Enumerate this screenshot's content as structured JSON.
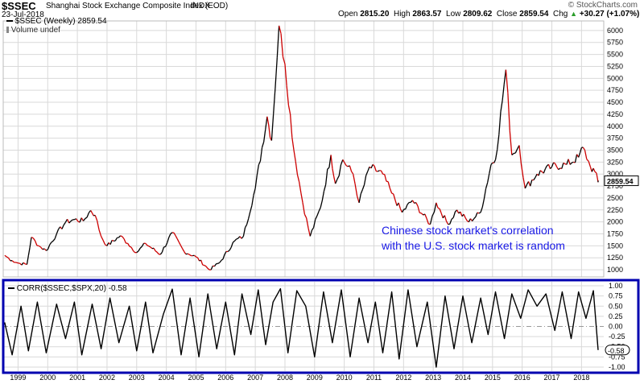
{
  "header": {
    "symbol": "$SSEC",
    "name": "Shanghai Stock Exchange Composite Index (EOD)",
    "exchange": "INDX",
    "date": "23-Jul-2018",
    "open_label": "Open",
    "open": "2815.20",
    "high_label": "High",
    "high": "2863.57",
    "low_label": "Low",
    "low": "2809.62",
    "close_label": "Close",
    "close": "2859.54",
    "chg_label": "Chg",
    "chg": "+30.27 (+1.07%)",
    "up_arrow": "▲",
    "copyright": "© StockCharts.com"
  },
  "price_panel": {
    "legend": "$SSEC (Weekly) 2859.54",
    "volume_label": "Volume undef",
    "last_value": "2859.54"
  },
  "corr_panel": {
    "legend": "CORR($SSEC,$SPX,20) -0.58",
    "last_value": "-0.58"
  },
  "annotation": {
    "line1": "Chinese stock market's correlation",
    "line2": "with the U.S. stock market is random"
  },
  "colors": {
    "price_line": "#000000",
    "price_down": "#cc0000",
    "grid": "#d9d9d9",
    "corr_border": "#0000b0",
    "annotation": "#1a1ae6",
    "zero_line": "#999999"
  },
  "chart_data": [
    {
      "type": "line",
      "series": [
        {
          "name": "$SSEC (Weekly)",
          "values": [
            {
              "x": 1998.55,
              "y": 1300
            },
            {
              "x": 1998.8,
              "y": 1190
            },
            {
              "x": 1999.0,
              "y": 1140
            },
            {
              "x": 1999.3,
              "y": 1110
            },
            {
              "x": 1999.45,
              "y": 1680
            },
            {
              "x": 1999.7,
              "y": 1500
            },
            {
              "x": 1999.95,
              "y": 1400
            },
            {
              "x": 2000.3,
              "y": 1750
            },
            {
              "x": 2000.6,
              "y": 1990
            },
            {
              "x": 2000.9,
              "y": 2050
            },
            {
              "x": 2001.2,
              "y": 2020
            },
            {
              "x": 2001.45,
              "y": 2240
            },
            {
              "x": 2001.6,
              "y": 2140
            },
            {
              "x": 2001.8,
              "y": 1700
            },
            {
              "x": 2002.0,
              "y": 1500
            },
            {
              "x": 2002.45,
              "y": 1710
            },
            {
              "x": 2002.7,
              "y": 1550
            },
            {
              "x": 2003.0,
              "y": 1360
            },
            {
              "x": 2003.3,
              "y": 1550
            },
            {
              "x": 2003.8,
              "y": 1320
            },
            {
              "x": 2004.2,
              "y": 1780
            },
            {
              "x": 2004.6,
              "y": 1380
            },
            {
              "x": 2005.0,
              "y": 1270
            },
            {
              "x": 2005.45,
              "y": 1000
            },
            {
              "x": 2005.8,
              "y": 1150
            },
            {
              "x": 2006.3,
              "y": 1600
            },
            {
              "x": 2006.6,
              "y": 1700
            },
            {
              "x": 2007.0,
              "y": 2700
            },
            {
              "x": 2007.4,
              "y": 4200
            },
            {
              "x": 2007.55,
              "y": 3700
            },
            {
              "x": 2007.8,
              "y": 6100
            },
            {
              "x": 2008.0,
              "y": 5300
            },
            {
              "x": 2008.3,
              "y": 3500
            },
            {
              "x": 2008.6,
              "y": 2400
            },
            {
              "x": 2008.85,
              "y": 1700
            },
            {
              "x": 2009.2,
              "y": 2300
            },
            {
              "x": 2009.55,
              "y": 3400
            },
            {
              "x": 2009.7,
              "y": 2800
            },
            {
              "x": 2009.95,
              "y": 3300
            },
            {
              "x": 2010.3,
              "y": 3000
            },
            {
              "x": 2010.5,
              "y": 2400
            },
            {
              "x": 2010.85,
              "y": 3150
            },
            {
              "x": 2011.3,
              "y": 3000
            },
            {
              "x": 2011.6,
              "y": 2600
            },
            {
              "x": 2011.95,
              "y": 2200
            },
            {
              "x": 2012.3,
              "y": 2450
            },
            {
              "x": 2012.9,
              "y": 1950
            },
            {
              "x": 2013.1,
              "y": 2400
            },
            {
              "x": 2013.5,
              "y": 1950
            },
            {
              "x": 2013.8,
              "y": 2250
            },
            {
              "x": 2014.2,
              "y": 2000
            },
            {
              "x": 2014.6,
              "y": 2200
            },
            {
              "x": 2014.95,
              "y": 3200
            },
            {
              "x": 2015.1,
              "y": 3300
            },
            {
              "x": 2015.45,
              "y": 5180
            },
            {
              "x": 2015.65,
              "y": 3400
            },
            {
              "x": 2015.9,
              "y": 3600
            },
            {
              "x": 2016.1,
              "y": 2700
            },
            {
              "x": 2016.5,
              "y": 3000
            },
            {
              "x": 2017.0,
              "y": 3150
            },
            {
              "x": 2017.5,
              "y": 3200
            },
            {
              "x": 2017.9,
              "y": 3350
            },
            {
              "x": 2018.05,
              "y": 3560
            },
            {
              "x": 2018.3,
              "y": 3150
            },
            {
              "x": 2018.45,
              "y": 3050
            },
            {
              "x": 2018.56,
              "y": 2830
            },
            {
              "x": 2018.56,
              "y": 2859.54
            }
          ]
        }
      ],
      "ylim": [
        850,
        6200
      ],
      "yticks": [
        1000,
        1250,
        1500,
        1750,
        2000,
        2250,
        2500,
        2750,
        3000,
        3250,
        3500,
        3750,
        4000,
        4250,
        4500,
        4750,
        5000,
        5250,
        5500,
        5750,
        6000
      ],
      "ytick_labels": [
        "1000",
        "1250",
        "1500",
        "1750",
        "2000",
        "2250",
        "2500",
        "2750",
        "3000",
        "3250",
        "3500",
        "3750",
        "4000",
        "4250",
        "4500",
        "4750",
        "5000",
        "5250",
        "5500",
        "5750",
        "6000"
      ],
      "xlim": [
        1998.5,
        2018.75
      ],
      "grid": true,
      "legend_position": "top-left"
    },
    {
      "type": "line",
      "series": [
        {
          "name": "CORR($SSEC,$SPX,20)",
          "values": [
            {
              "x": 1998.55,
              "y": 0.1
            },
            {
              "x": 1998.8,
              "y": -0.7
            },
            {
              "x": 1999.1,
              "y": 0.5
            },
            {
              "x": 1999.35,
              "y": -0.6
            },
            {
              "x": 1999.65,
              "y": 0.6
            },
            {
              "x": 1999.95,
              "y": -0.65
            },
            {
              "x": 2000.3,
              "y": 0.55
            },
            {
              "x": 2000.6,
              "y": -0.3
            },
            {
              "x": 2000.9,
              "y": 0.6
            },
            {
              "x": 2001.15,
              "y": -0.7
            },
            {
              "x": 2001.5,
              "y": 0.55
            },
            {
              "x": 2001.8,
              "y": -0.55
            },
            {
              "x": 2002.1,
              "y": 0.7
            },
            {
              "x": 2002.4,
              "y": -0.4
            },
            {
              "x": 2002.75,
              "y": 0.5
            },
            {
              "x": 2003.0,
              "y": -0.6
            },
            {
              "x": 2003.3,
              "y": 0.6
            },
            {
              "x": 2003.55,
              "y": -0.65
            },
            {
              "x": 2003.9,
              "y": 0.3
            },
            {
              "x": 2004.2,
              "y": 0.92
            },
            {
              "x": 2004.5,
              "y": -0.7
            },
            {
              "x": 2004.8,
              "y": 0.7
            },
            {
              "x": 2005.1,
              "y": -0.75
            },
            {
              "x": 2005.4,
              "y": 0.8
            },
            {
              "x": 2005.7,
              "y": -0.55
            },
            {
              "x": 2006.0,
              "y": 0.6
            },
            {
              "x": 2006.3,
              "y": -0.7
            },
            {
              "x": 2006.55,
              "y": 0.8
            },
            {
              "x": 2006.85,
              "y": -0.2
            },
            {
              "x": 2007.1,
              "y": 0.9
            },
            {
              "x": 2007.35,
              "y": -0.45
            },
            {
              "x": 2007.6,
              "y": 0.6
            },
            {
              "x": 2007.85,
              "y": 0.93
            },
            {
              "x": 2008.1,
              "y": -0.65
            },
            {
              "x": 2008.4,
              "y": 0.88
            },
            {
              "x": 2008.7,
              "y": 0.5
            },
            {
              "x": 2009.0,
              "y": -0.75
            },
            {
              "x": 2009.3,
              "y": 0.85
            },
            {
              "x": 2009.6,
              "y": -0.4
            },
            {
              "x": 2009.9,
              "y": 0.9
            },
            {
              "x": 2010.2,
              "y": -0.75
            },
            {
              "x": 2010.5,
              "y": 0.7
            },
            {
              "x": 2010.8,
              "y": -0.4
            },
            {
              "x": 2011.05,
              "y": 0.6
            },
            {
              "x": 2011.3,
              "y": -0.65
            },
            {
              "x": 2011.6,
              "y": 0.85
            },
            {
              "x": 2011.85,
              "y": -0.8
            },
            {
              "x": 2012.15,
              "y": 0.9
            },
            {
              "x": 2012.45,
              "y": -0.5
            },
            {
              "x": 2012.8,
              "y": 0.6
            },
            {
              "x": 2013.1,
              "y": -1.0
            },
            {
              "x": 2013.4,
              "y": 0.75
            },
            {
              "x": 2013.7,
              "y": -0.55
            },
            {
              "x": 2014.0,
              "y": 0.75
            },
            {
              "x": 2014.3,
              "y": -0.4
            },
            {
              "x": 2014.6,
              "y": 0.7
            },
            {
              "x": 2014.85,
              "y": -0.2
            },
            {
              "x": 2015.1,
              "y": 0.85
            },
            {
              "x": 2015.4,
              "y": -0.3
            },
            {
              "x": 2015.65,
              "y": 0.8
            },
            {
              "x": 2015.95,
              "y": 0.2
            },
            {
              "x": 2016.2,
              "y": 0.9
            },
            {
              "x": 2016.5,
              "y": 0.5
            },
            {
              "x": 2016.8,
              "y": 0.8
            },
            {
              "x": 2017.1,
              "y": -0.1
            },
            {
              "x": 2017.35,
              "y": 0.85
            },
            {
              "x": 2017.65,
              "y": -0.3
            },
            {
              "x": 2017.9,
              "y": 0.85
            },
            {
              "x": 2018.15,
              "y": 0.2
            },
            {
              "x": 2018.4,
              "y": 0.88
            },
            {
              "x": 2018.56,
              "y": -0.58
            }
          ]
        }
      ],
      "ylim": [
        -1.1,
        1.1
      ],
      "yticks": [
        -1.0,
        -0.75,
        -0.5,
        -0.25,
        0,
        0.25,
        0.5,
        0.75,
        1.0
      ],
      "ytick_labels": [
        "-1.00",
        "-0.75",
        "-0.50",
        "-0.25",
        "0.00",
        "0.25",
        "0.50",
        "0.75",
        "1.00"
      ],
      "xlim": [
        1998.5,
        2018.75
      ],
      "xticks": [
        1999,
        2000,
        2001,
        2002,
        2003,
        2004,
        2005,
        2006,
        2007,
        2008,
        2009,
        2010,
        2011,
        2012,
        2013,
        2014,
        2015,
        2016,
        2017,
        2018
      ],
      "xtick_labels": [
        "1999",
        "2000",
        "2001",
        "2002",
        "2003",
        "2004",
        "2005",
        "2006",
        "2007",
        "2008",
        "2009",
        "2010",
        "2011",
        "2012",
        "2013",
        "2014",
        "2015",
        "2016",
        "2017",
        "2018"
      ],
      "grid": true,
      "legend_position": "top-left"
    }
  ]
}
